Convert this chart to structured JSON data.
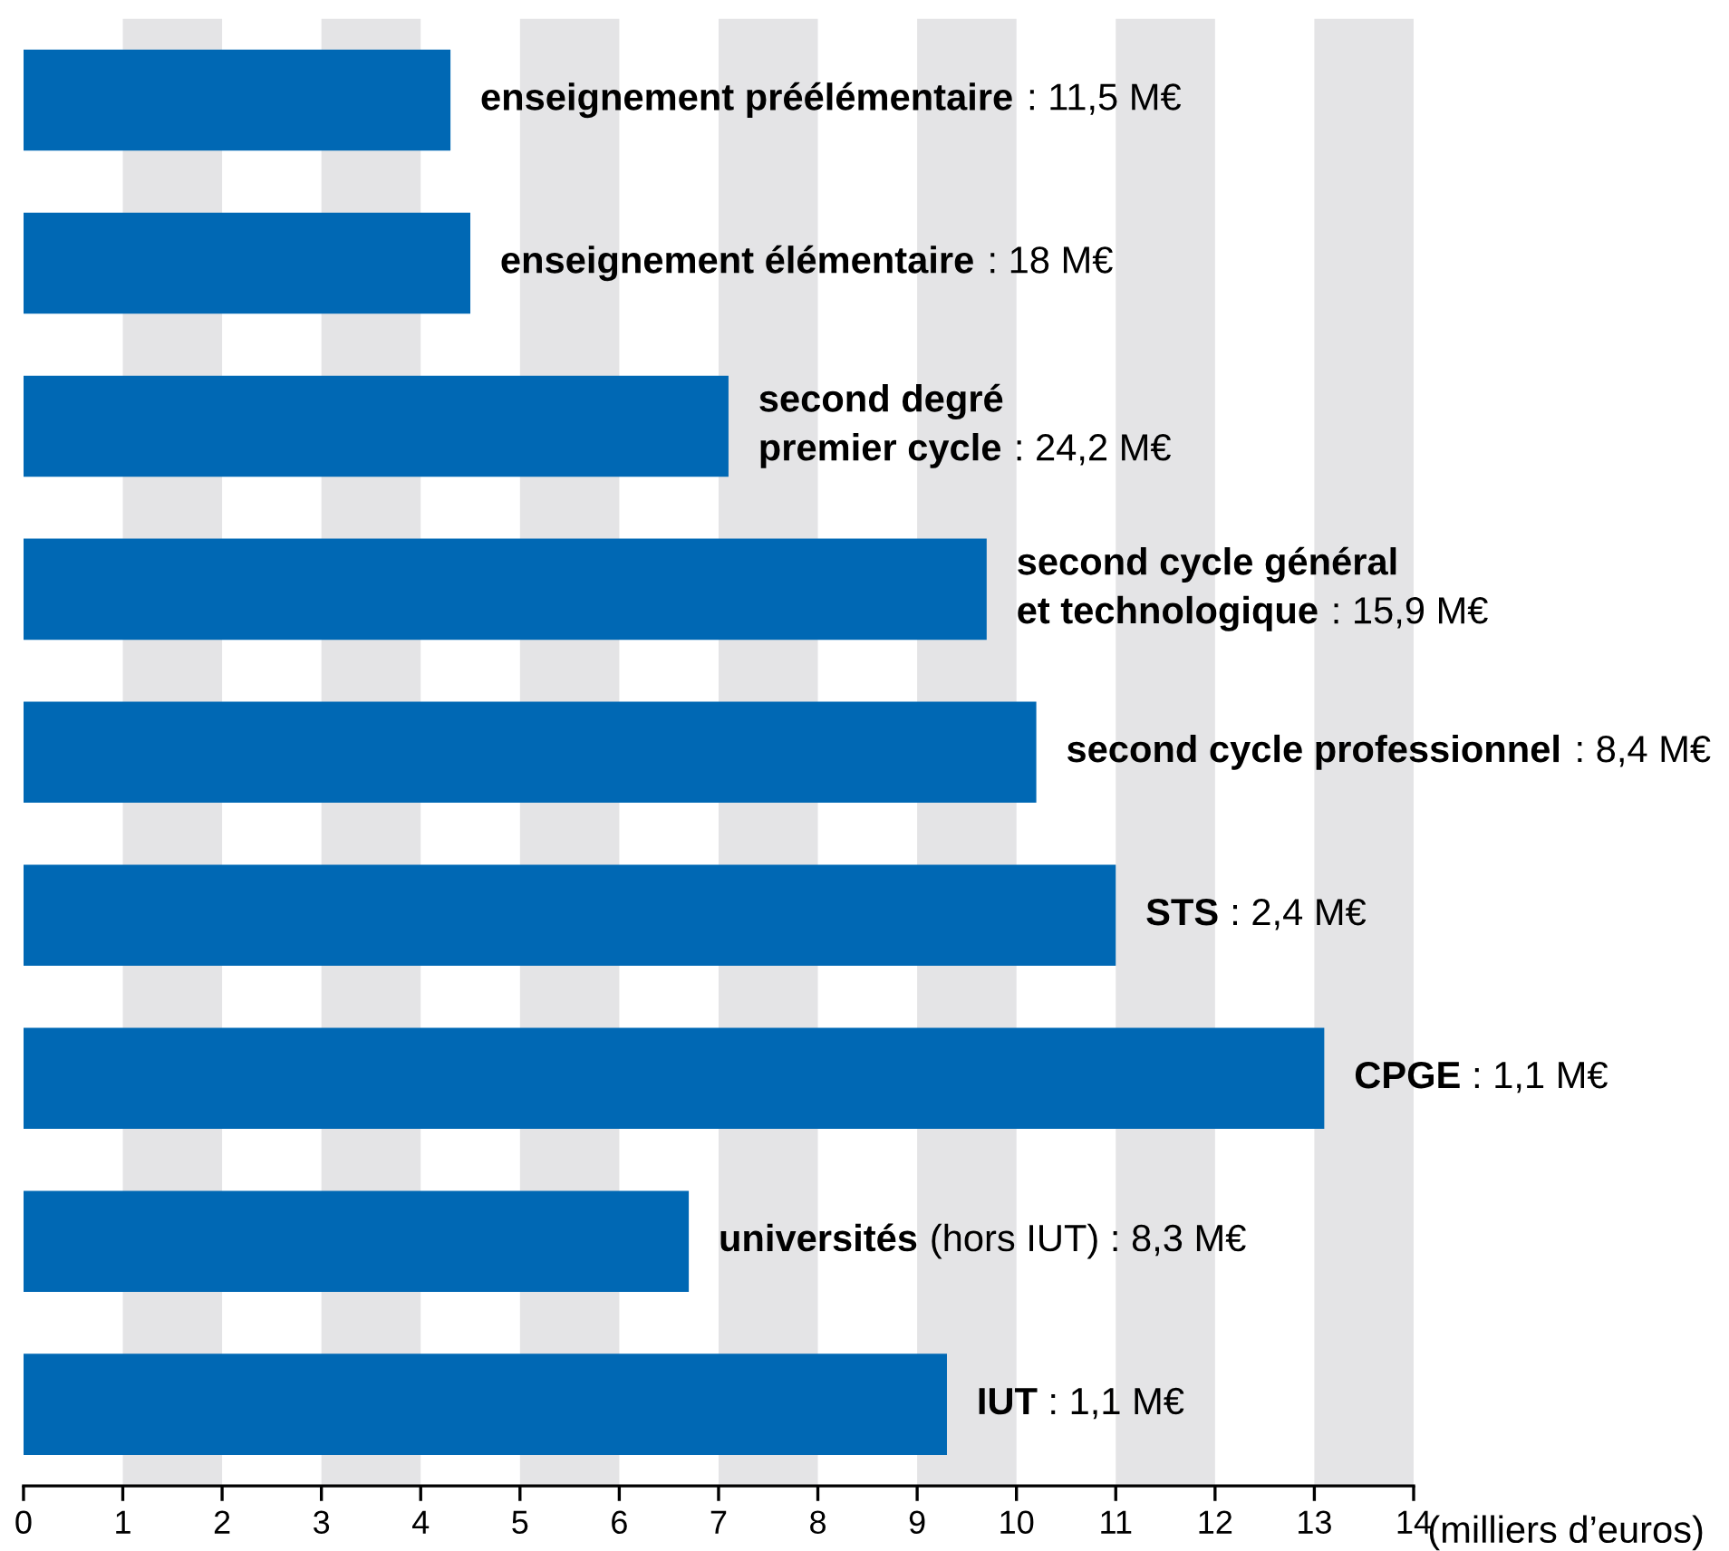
{
  "chart_data": {
    "type": "bar",
    "orientation": "horizontal",
    "xlabel": "(milliers d’euros)",
    "categories": [
      "enseignement préélémentaire",
      "enseignement élémentaire",
      "second degré\npremier cycle",
      "second cycle général\net technologique",
      "second cycle professionnel",
      "STS",
      "CPGE",
      "universités",
      "IUT"
    ],
    "values": [
      4.3,
      4.5,
      7.1,
      9.7,
      10.2,
      11.0,
      13.1,
      6.7,
      9.3
    ],
    "color": "#0068b4",
    "annotations": [
      " : 11,5 M€",
      " : 18 M€",
      " : 24,2 M€",
      " : 15,9 M€",
      " : 8,4 M€",
      " : 2,4 M€",
      " : 1,1 M€",
      " (hors IUT) : 8,3 M€",
      " : 1,1 M€"
    ],
    "bands": [
      {
        "axis": "x",
        "from": 1,
        "to": 2,
        "color": "#e4e4e6"
      },
      {
        "axis": "x",
        "from": 3,
        "to": 4,
        "color": "#e4e4e6"
      },
      {
        "axis": "x",
        "from": 5,
        "to": 6,
        "color": "#e4e4e6"
      },
      {
        "axis": "x",
        "from": 7,
        "to": 8,
        "color": "#e4e4e6"
      },
      {
        "axis": "x",
        "from": 9,
        "to": 10,
        "color": "#e4e4e6"
      },
      {
        "axis": "x",
        "from": 11,
        "to": 12,
        "color": "#e4e4e6"
      },
      {
        "axis": "x",
        "from": 13,
        "to": 14,
        "color": "#e4e4e6"
      }
    ],
    "xlim": [
      0,
      14
    ],
    "xticks": [
      0,
      1,
      2,
      3,
      4,
      5,
      6,
      7,
      8,
      9,
      10,
      11,
      12,
      13,
      14
    ]
  }
}
